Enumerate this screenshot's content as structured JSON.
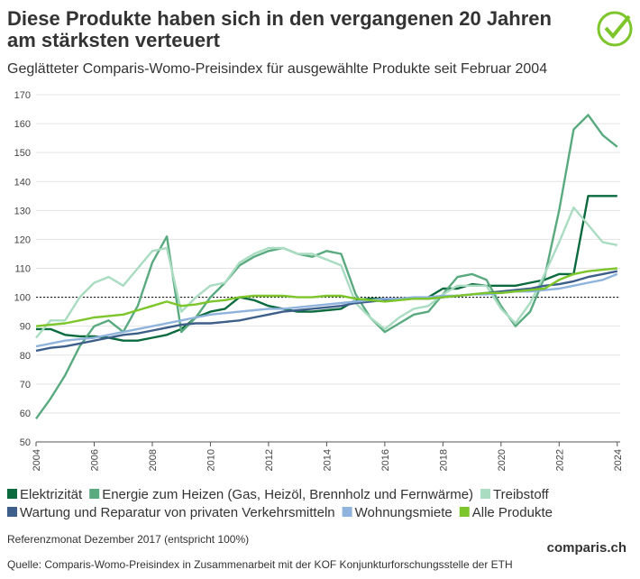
{
  "chart_data": {
    "type": "line",
    "title": "Diese Produkte haben sich in den vergangenen 20 Jahren am stärksten verteuert",
    "subtitle": "Geglätteter Comparis-Womo-Preisindex für ausgewählte Produkte seit Februar 2004",
    "note": "Referenzmonat Dezember 2017 (entspricht 100%)",
    "source": "Quelle: Comparis-Womo-Preisindex in Zusammenarbeit mit der KOF Konjunkturforschungsstelle der ETH",
    "logo": "comparis.ch",
    "x": [
      2004,
      2004.5,
      2005,
      2005.5,
      2006,
      2006.5,
      2007,
      2007.5,
      2008,
      2008.5,
      2009,
      2009.5,
      2010,
      2010.5,
      2011,
      2011.5,
      2012,
      2012.5,
      2013,
      2013.5,
      2014,
      2014.5,
      2015,
      2015.5,
      2016,
      2016.5,
      2017,
      2017.5,
      2018,
      2018.5,
      2019,
      2019.5,
      2020,
      2020.5,
      2021,
      2021.5,
      2022,
      2022.5,
      2023,
      2023.5,
      2024
    ],
    "xlim": [
      2004,
      2024.1
    ],
    "xticks": [
      2004,
      2006,
      2008,
      2010,
      2012,
      2014,
      2016,
      2018,
      2020,
      2022,
      2024
    ],
    "ylim": [
      50,
      170
    ],
    "yticks": [
      50,
      60,
      70,
      80,
      90,
      100,
      110,
      120,
      130,
      140,
      150,
      160,
      170
    ],
    "reference_line": 100,
    "series": [
      {
        "name": "Elektrizität",
        "color": "#0b6b3e",
        "values": [
          89,
          89,
          87,
          86.5,
          86.5,
          86,
          85,
          85,
          86,
          87,
          89,
          93,
          95,
          96,
          100,
          99,
          97,
          96,
          95,
          95,
          95.5,
          96,
          99,
          99.5,
          99.5,
          99.5,
          99.5,
          100,
          103,
          103,
          104.5,
          104,
          104,
          104,
          105,
          106,
          108,
          108,
          135,
          135,
          135
        ]
      },
      {
        "name": "Energie zum Heizen (Gas, Heizöl, Brennholz und Fernwärme)",
        "color": "#5aaa80",
        "values": [
          58,
          65,
          73,
          83,
          90,
          92,
          88,
          97,
          112,
          121,
          88,
          93,
          100,
          105,
          111,
          114,
          116,
          117,
          115,
          114,
          116,
          115,
          101,
          93,
          88,
          91,
          94,
          95,
          101,
          107,
          108,
          106,
          97,
          90,
          95,
          107,
          130,
          158,
          163,
          156,
          152
        ]
      },
      {
        "name": "Treibstoff",
        "color": "#a9dcc1",
        "values": [
          86,
          92,
          92,
          100,
          105,
          107,
          104,
          110,
          116,
          117,
          95,
          100,
          104,
          105,
          112,
          115,
          117,
          117,
          115,
          115,
          113,
          111,
          98,
          93,
          89,
          93,
          96,
          97,
          101,
          104,
          104,
          104,
          96,
          91,
          98,
          108,
          119,
          131,
          125,
          119,
          118
        ]
      },
      {
        "name": "Wartung und Reparatur von privaten Verkehrsmitteln",
        "color": "#3d5f8a",
        "values": [
          81.5,
          82.5,
          83,
          84,
          85,
          86,
          87,
          87.5,
          88.5,
          89.5,
          90.5,
          91,
          91,
          91.5,
          92,
          93,
          94,
          95,
          95.5,
          96,
          96.5,
          97,
          98,
          98.5,
          99,
          99.5,
          99.5,
          99.5,
          100,
          100.5,
          101,
          101.5,
          102,
          102.5,
          103,
          104,
          104.5,
          105.5,
          107,
          108,
          109
        ]
      },
      {
        "name": "Wohnungsmiete",
        "color": "#8fb3dc",
        "values": [
          83,
          84,
          85,
          85.5,
          86,
          87,
          88,
          89,
          90,
          91,
          92,
          93,
          94,
          94.5,
          95,
          95.5,
          96,
          96,
          96.5,
          97,
          97.5,
          98,
          98.5,
          99,
          99.5,
          99.5,
          100,
          100,
          100.5,
          100.5,
          101,
          101,
          101.5,
          102,
          102,
          102.5,
          103,
          104,
          105,
          106,
          108
        ]
      },
      {
        "name": "Alle Produkte",
        "color": "#7cc52a",
        "values": [
          90,
          90.5,
          91,
          92,
          93,
          93.5,
          94,
          95.5,
          97,
          98.5,
          97,
          97.5,
          98.5,
          99,
          100,
          100.5,
          100.5,
          100.5,
          100,
          100,
          100.5,
          100.5,
          99.5,
          99,
          98.5,
          99,
          99.5,
          99.5,
          100,
          100.5,
          101,
          101.5,
          101.5,
          102,
          102.5,
          103,
          106,
          108,
          109,
          109.5,
          110
        ]
      }
    ]
  }
}
